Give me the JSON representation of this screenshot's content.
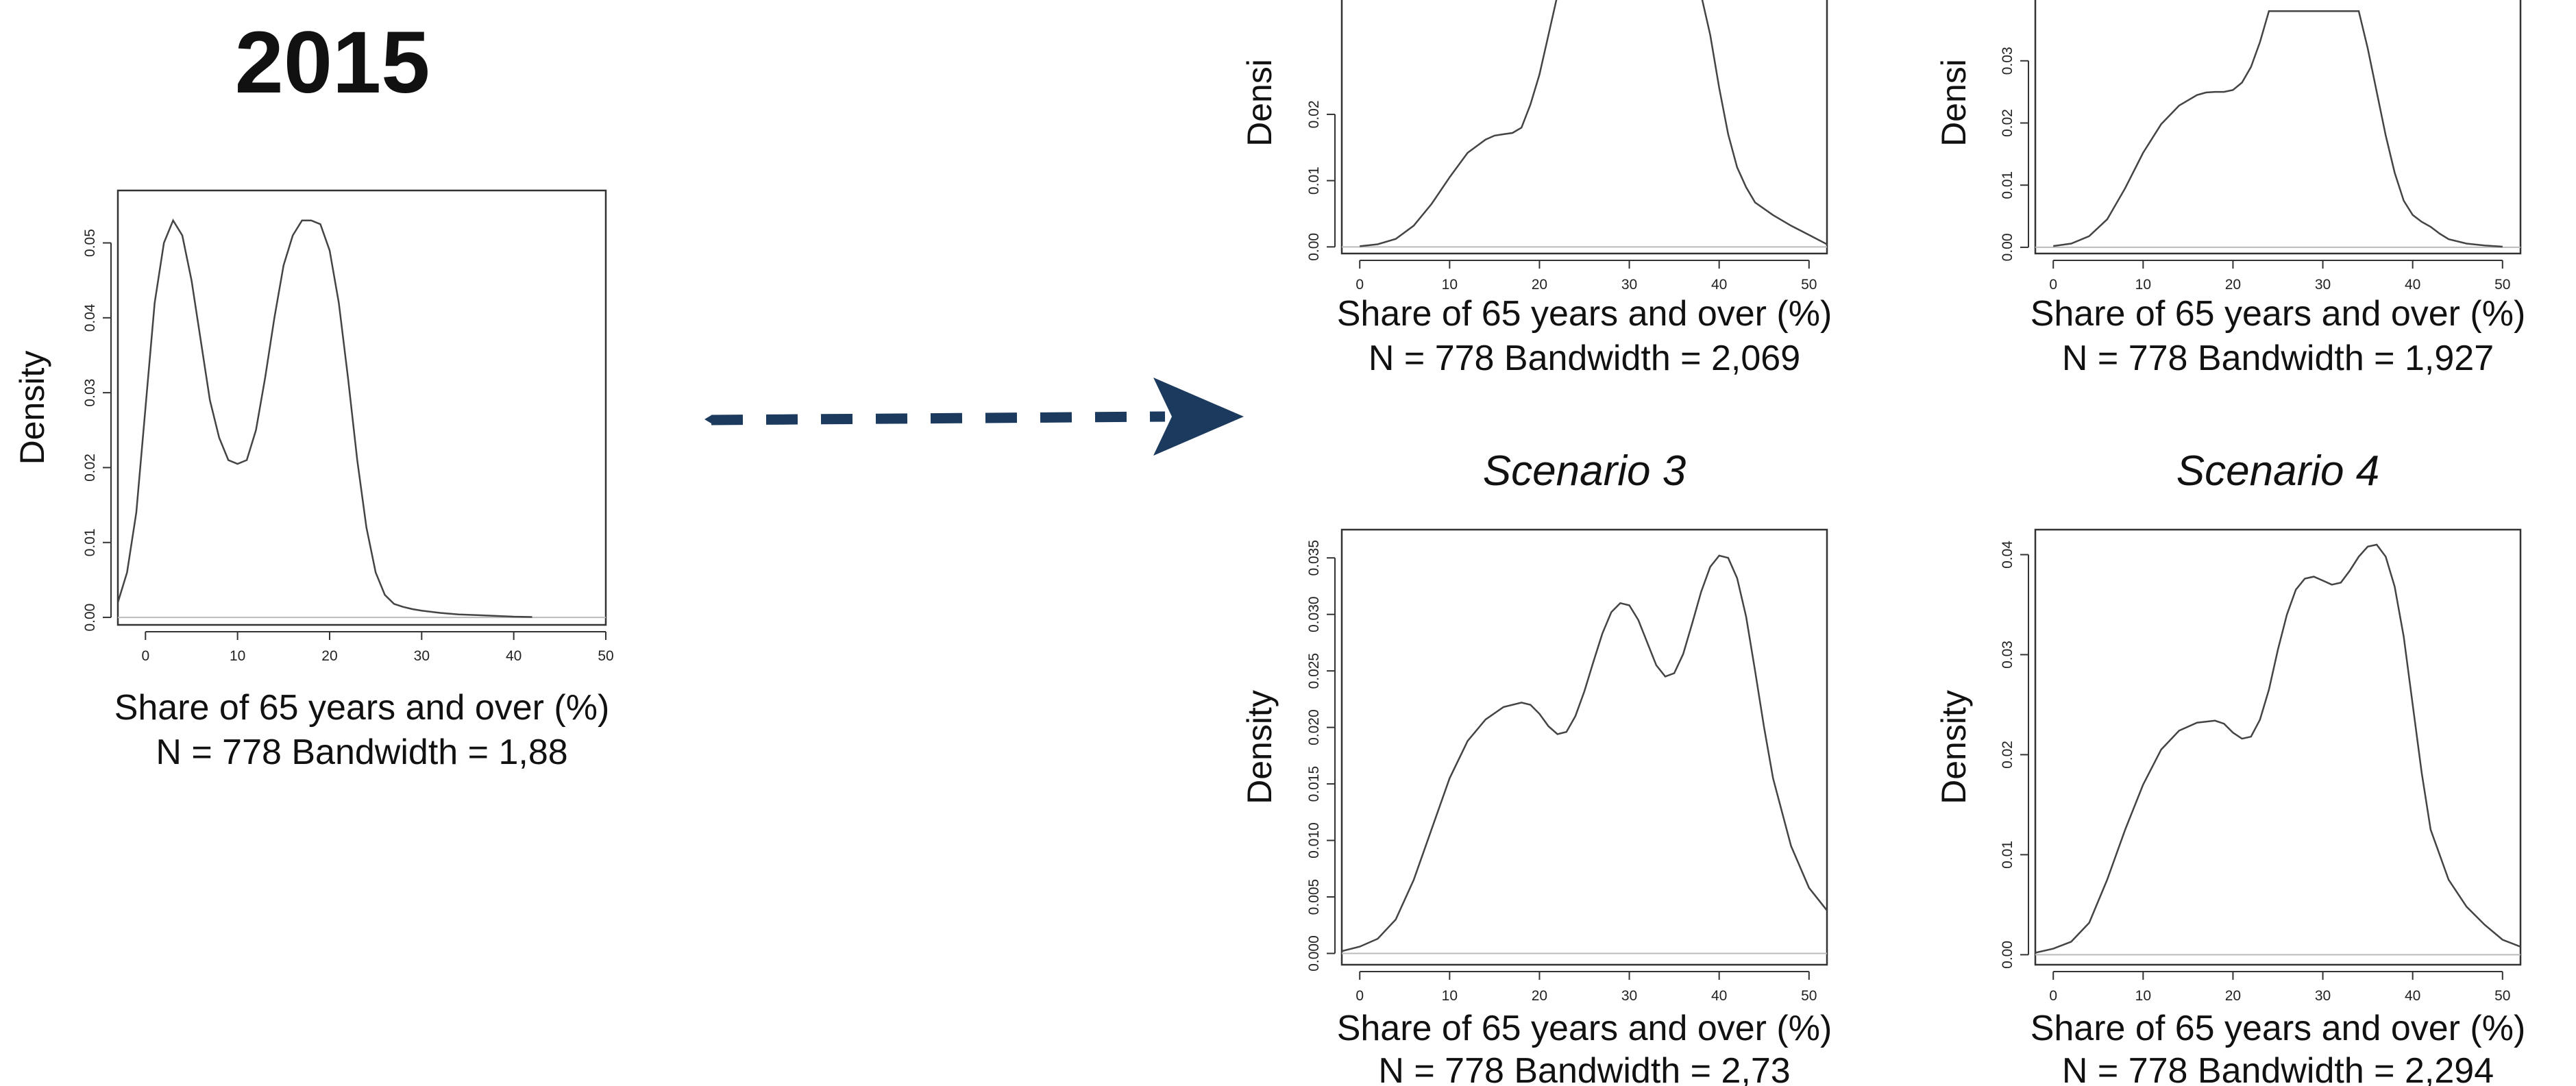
{
  "main_title": "2015",
  "chart_data": [
    {
      "id": "p2015",
      "type": "line",
      "subplot_title": "",
      "xlabel": "Share of 65 years and over (%)",
      "ylabel": "Density",
      "subtitle": "N = 778   Bandwidth = 1,88",
      "xlim": [
        -3,
        50
      ],
      "ylim": [
        -0.001,
        0.057
      ],
      "x_ticks": [
        "0",
        "10",
        "20",
        "30",
        "40",
        "50"
      ],
      "y_ticks": [
        "0.00",
        "0.01",
        "0.02",
        "0.03",
        "0.04",
        "0.05"
      ],
      "series": [
        {
          "x": [
            -3,
            -2,
            -1,
            0,
            1,
            2,
            3,
            4,
            5,
            6,
            7,
            8,
            9,
            10,
            11,
            12,
            13,
            14,
            15,
            16,
            17,
            18,
            19,
            20,
            21,
            22,
            23,
            24,
            25,
            26,
            27,
            28,
            29,
            30,
            32,
            34,
            36,
            38,
            40,
            42
          ],
          "y": [
            0.002,
            0.006,
            0.014,
            0.028,
            0.042,
            0.05,
            0.053,
            0.051,
            0.045,
            0.037,
            0.029,
            0.024,
            0.021,
            0.0205,
            0.021,
            0.025,
            0.032,
            0.04,
            0.047,
            0.051,
            0.053,
            0.053,
            0.0525,
            0.049,
            0.042,
            0.032,
            0.021,
            0.012,
            0.006,
            0.003,
            0.0018,
            0.0014,
            0.0011,
            0.0009,
            0.0006,
            0.0004,
            0.0003,
            0.0002,
            0.0001,
            5e-05
          ]
        }
      ]
    },
    {
      "id": "s1",
      "type": "line",
      "subplot_title": "",
      "xlabel": "Share of 65 years and over (%)",
      "ylabel": "Densi",
      "subtitle": "N = 778   Bandwidth = 2,069",
      "xlim": [
        -2,
        52
      ],
      "ylim": [
        -0.001,
        0.0445
      ],
      "x_ticks": [
        "0",
        "10",
        "20",
        "30",
        "40",
        "50"
      ],
      "y_ticks": [
        "0.00",
        "0.01",
        "0.02"
      ],
      "series": [
        {
          "x": [
            0,
            2,
            4,
            6,
            8,
            10,
            12,
            14,
            15,
            16,
            17,
            18,
            19,
            20,
            21,
            22,
            38,
            39,
            40,
            41,
            42,
            43,
            44,
            46,
            48,
            50,
            52
          ],
          "y": [
            0.0001,
            0.0004,
            0.0012,
            0.0032,
            0.0065,
            0.0105,
            0.0142,
            0.0162,
            0.0168,
            0.017,
            0.0172,
            0.018,
            0.0215,
            0.026,
            0.032,
            0.038,
            0.038,
            0.032,
            0.024,
            0.017,
            0.012,
            0.009,
            0.0067,
            0.0048,
            0.0032,
            0.0018,
            0.0004
          ]
        }
      ]
    },
    {
      "id": "s2",
      "type": "line",
      "subplot_title": "",
      "xlabel": "Share of 65 years and over (%)",
      "ylabel": "Densi",
      "subtitle": "N = 778   Bandwidth = 1,927",
      "xlim": [
        -2,
        52
      ],
      "ylim": [
        -0.001,
        0.0475
      ],
      "x_ticks": [
        "0",
        "10",
        "20",
        "30",
        "40",
        "50"
      ],
      "y_ticks": [
        "0.00",
        "0.01",
        "0.02",
        "0.03"
      ],
      "series": [
        {
          "x": [
            0,
            2,
            4,
            6,
            8,
            10,
            12,
            14,
            16,
            17,
            18,
            19,
            20,
            21,
            22,
            23,
            24,
            34,
            35,
            36,
            37,
            38,
            39,
            40,
            41,
            42,
            43,
            44,
            46,
            48,
            50
          ],
          "y": [
            0.0002,
            0.0006,
            0.0018,
            0.0045,
            0.0095,
            0.0152,
            0.0198,
            0.0228,
            0.0245,
            0.0249,
            0.025,
            0.025,
            0.0253,
            0.0265,
            0.029,
            0.033,
            0.038,
            0.038,
            0.032,
            0.025,
            0.018,
            0.012,
            0.0075,
            0.0052,
            0.0041,
            0.0033,
            0.0022,
            0.0013,
            0.0006,
            0.0003,
            0.0001
          ]
        }
      ]
    },
    {
      "id": "s3",
      "type": "line",
      "subplot_title": "Scenario 3",
      "xlabel": "Share of 65 years and over (%)",
      "ylabel": "Density",
      "subtitle": "N = 778   Bandwidth = 2,73",
      "xlim": [
        -2,
        52
      ],
      "ylim": [
        -0.001,
        0.0375
      ],
      "x_ticks": [
        "0",
        "10",
        "20",
        "30",
        "40",
        "50"
      ],
      "y_ticks": [
        "0.000",
        "0.005",
        "0.010",
        "0.015",
        "0.020",
        "0.025",
        "0.030",
        "0.035"
      ],
      "series": [
        {
          "x": [
            -2,
            0,
            2,
            4,
            6,
            8,
            10,
            12,
            14,
            16,
            18,
            19,
            20,
            21,
            22,
            23,
            24,
            25,
            26,
            27,
            28,
            29,
            30,
            31,
            32,
            33,
            34,
            35,
            36,
            37,
            38,
            39,
            40,
            41,
            42,
            43,
            44,
            45,
            46,
            48,
            50,
            52
          ],
          "y": [
            0.0002,
            0.0006,
            0.0013,
            0.003,
            0.0065,
            0.011,
            0.0155,
            0.0188,
            0.0207,
            0.0218,
            0.0222,
            0.022,
            0.0212,
            0.0201,
            0.0194,
            0.0196,
            0.021,
            0.0232,
            0.0258,
            0.0283,
            0.0302,
            0.031,
            0.0308,
            0.0295,
            0.0275,
            0.0255,
            0.0245,
            0.0248,
            0.0265,
            0.0292,
            0.032,
            0.0342,
            0.0352,
            0.035,
            0.0332,
            0.0298,
            0.025,
            0.02,
            0.0155,
            0.0095,
            0.0058,
            0.0038
          ]
        }
      ]
    },
    {
      "id": "s4",
      "type": "line",
      "subplot_title": "Scenario 4",
      "xlabel": "Share of 65 years and over (%)",
      "ylabel": "Density",
      "subtitle": "N = 778   Bandwidth = 2,294",
      "xlim": [
        -2,
        52
      ],
      "ylim": [
        -0.001,
        0.0425
      ],
      "x_ticks": [
        "0",
        "10",
        "20",
        "30",
        "40",
        "50"
      ],
      "y_ticks": [
        "0.00",
        "0.01",
        "0.02",
        "0.03",
        "0.04"
      ],
      "series": [
        {
          "x": [
            -2,
            0,
            2,
            4,
            6,
            8,
            10,
            12,
            14,
            16,
            18,
            19,
            20,
            21,
            22,
            23,
            24,
            25,
            26,
            27,
            28,
            29,
            30,
            31,
            32,
            33,
            34,
            35,
            36,
            37,
            38,
            39,
            40,
            41,
            42,
            44,
            46,
            48,
            50,
            52
          ],
          "y": [
            0.0002,
            0.0006,
            0.0013,
            0.0032,
            0.0075,
            0.0125,
            0.017,
            0.0205,
            0.0224,
            0.0232,
            0.0234,
            0.0231,
            0.0222,
            0.0216,
            0.0218,
            0.0235,
            0.0265,
            0.0305,
            0.034,
            0.0365,
            0.0376,
            0.0378,
            0.0374,
            0.037,
            0.0372,
            0.0384,
            0.0398,
            0.0408,
            0.041,
            0.0398,
            0.0368,
            0.0318,
            0.025,
            0.0182,
            0.0125,
            0.0075,
            0.0048,
            0.003,
            0.0015,
            0.0008
          ]
        }
      ]
    }
  ]
}
